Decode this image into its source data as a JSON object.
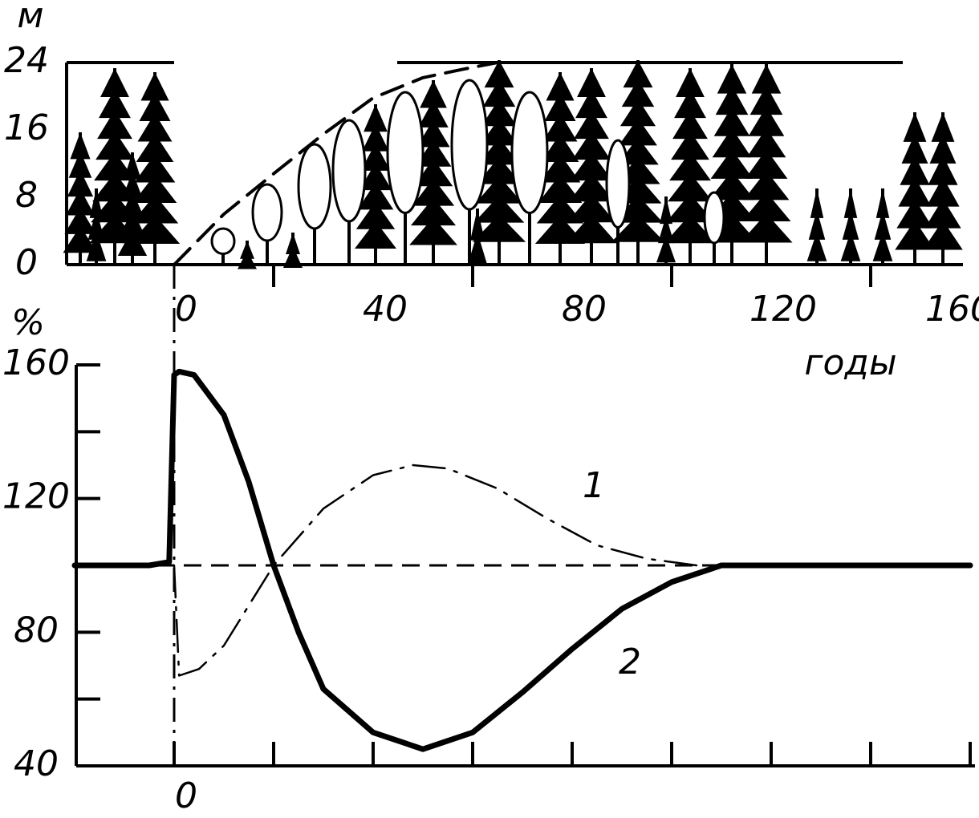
{
  "chart_data": [
    {
      "type": "line",
      "ylabel": "м",
      "xlabel": "годы",
      "xlim": [
        -20,
        160
      ],
      "ylim": [
        0,
        24
      ],
      "xticks": [
        0,
        40,
        80,
        120,
        160
      ],
      "xminor_ticks": [
        20,
        60,
        100,
        140
      ],
      "yticks": [
        0,
        8,
        16,
        24
      ],
      "series": [
        {
          "color": "#000000",
          "line_style": "dashed",
          "linewidth": 4,
          "x": [
            0,
            10,
            20,
            30,
            40,
            50,
            58,
            65
          ],
          "values": [
            0,
            6,
            10.8,
            15.5,
            19.8,
            22.2,
            23.2,
            24
          ]
        }
      ]
    },
    {
      "type": "line",
      "ylabel": "%",
      "xlim": [
        -20,
        160
      ],
      "ylim": [
        40,
        160
      ],
      "xticks": [
        0
      ],
      "xminor_ticks": [
        20,
        40,
        60,
        80,
        100,
        120,
        140,
        160
      ],
      "yticks": [
        40,
        80,
        120,
        160
      ],
      "yminor_ticks": [
        60,
        100,
        140
      ],
      "reference_line": 100,
      "series": [
        {
          "name": "1",
          "color": "#000000",
          "line_style": "dashdot",
          "linewidth": 2.5,
          "x": [
            0,
            1,
            5,
            10,
            15,
            20,
            30,
            40,
            48,
            55,
            65,
            75,
            85,
            95,
            105,
            110,
            130,
            160
          ],
          "values": [
            100,
            67,
            69,
            76,
            88,
            100,
            117,
            127,
            130,
            129,
            123,
            114,
            106,
            102,
            100,
            100,
            100,
            100
          ]
        },
        {
          "name": "2",
          "color": "#000000",
          "line_style": "solid",
          "linewidth": 7,
          "x": [
            -20,
            -5,
            -1,
            0,
            1,
            4,
            10,
            15,
            20,
            25,
            30,
            40,
            50,
            60,
            70,
            80,
            90,
            100,
            110,
            130,
            160
          ],
          "values": [
            100,
            100,
            101,
            157,
            158,
            157,
            145,
            125,
            100,
            80,
            63,
            50,
            45,
            50,
            62,
            75,
            87,
            95,
            100,
            100,
            100
          ]
        }
      ]
    }
  ]
}
